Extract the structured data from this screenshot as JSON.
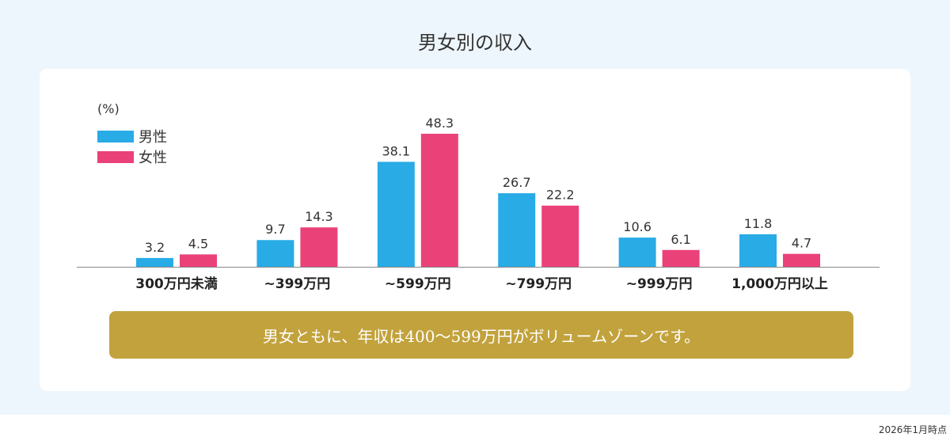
{
  "title": "男女別の収入",
  "footnote": "2026年1月時点",
  "callout": "男女ともに、年収は400～599万円がボリュームゾーンです。",
  "colors": {
    "male": "#29abe6",
    "female": "#ea4179",
    "callout": "#c2a23c"
  },
  "chart_data": {
    "type": "bar",
    "unit_label": "(%)",
    "categories": [
      "300万円未満",
      "~399万円",
      "~599万円",
      "~799万円",
      "~999万円",
      "1,000万円以上"
    ],
    "series": [
      {
        "name": "男性",
        "values": [
          3.2,
          9.7,
          38.1,
          26.7,
          10.6,
          11.8
        ]
      },
      {
        "name": "女性",
        "values": [
          4.5,
          14.3,
          48.3,
          22.2,
          6.1,
          4.7
        ]
      }
    ],
    "value_labels": [
      [
        "3.2",
        "9.7",
        "38.1",
        "26.7",
        "10.6",
        "11.8"
      ],
      [
        "4.5",
        "14.3",
        "48.3",
        "22.2",
        "6.1",
        "4.7"
      ]
    ],
    "ylim": [
      0,
      50
    ],
    "legend": "top-left",
    "grid": false
  }
}
